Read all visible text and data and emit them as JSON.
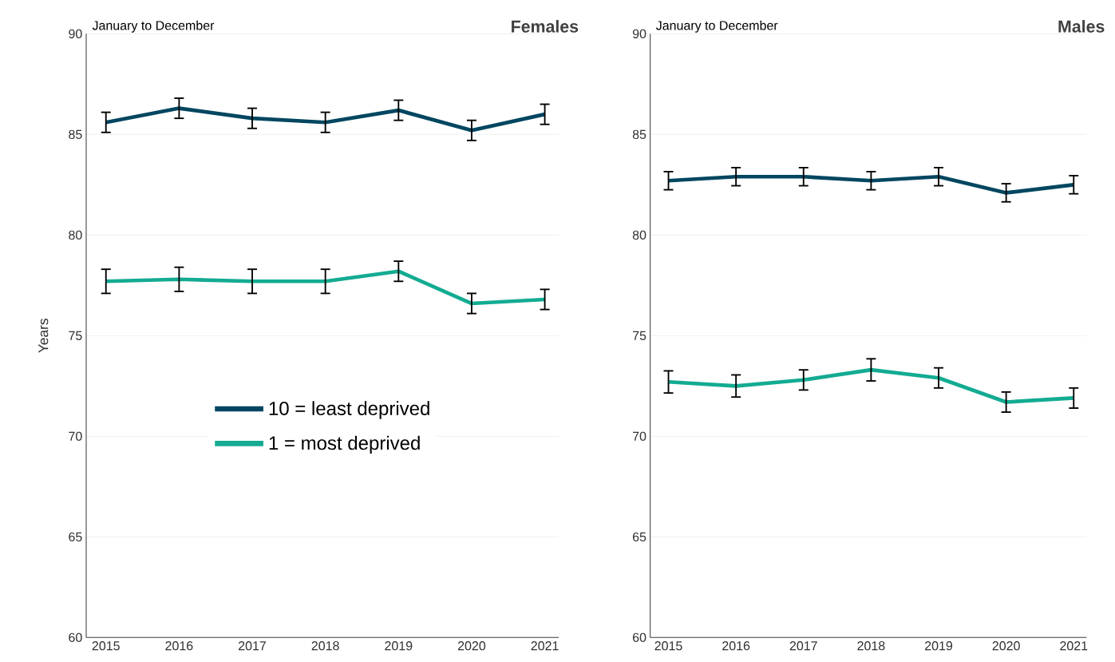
{
  "chart_data": [
    {
      "type": "line",
      "title": "Females",
      "subtitle": "January to December",
      "ylabel": "Years",
      "categories": [
        "2015",
        "2016",
        "2017",
        "2018",
        "2019",
        "2020",
        "2021"
      ],
      "series": [
        {
          "name": "10 = least deprived",
          "color": "#004660",
          "values": [
            85.6,
            86.3,
            85.8,
            85.6,
            86.2,
            85.2,
            86.0
          ],
          "errors": [
            0.5,
            0.5,
            0.5,
            0.5,
            0.5,
            0.5,
            0.5
          ]
        },
        {
          "name": "1 = most deprived",
          "color": "#13ab92",
          "values": [
            77.7,
            77.8,
            77.7,
            77.7,
            78.2,
            76.6,
            76.8
          ],
          "errors": [
            0.6,
            0.6,
            0.6,
            0.6,
            0.5,
            0.5,
            0.5
          ]
        }
      ],
      "ylim": [
        60,
        90
      ],
      "yticks": [
        60,
        65,
        70,
        75,
        80,
        85,
        90
      ],
      "grid": "y",
      "legend": "center"
    },
    {
      "type": "line",
      "title": "Males",
      "subtitle": "January to December",
      "categories": [
        "2015",
        "2016",
        "2017",
        "2018",
        "2019",
        "2020",
        "2021"
      ],
      "series": [
        {
          "color": "#004660",
          "values": [
            82.7,
            82.9,
            82.9,
            82.7,
            82.9,
            82.1,
            82.5
          ],
          "errors": [
            0.45,
            0.45,
            0.45,
            0.45,
            0.45,
            0.45,
            0.45
          ]
        },
        {
          "color": "#13ab92",
          "values": [
            72.7,
            72.5,
            72.8,
            73.3,
            72.9,
            71.7,
            71.9
          ],
          "errors": [
            0.55,
            0.55,
            0.5,
            0.55,
            0.5,
            0.5,
            0.5
          ]
        }
      ],
      "ylim": [
        60,
        90
      ],
      "yticks": [
        60,
        65,
        70,
        75,
        80,
        85,
        90
      ],
      "grid": "y"
    }
  ]
}
